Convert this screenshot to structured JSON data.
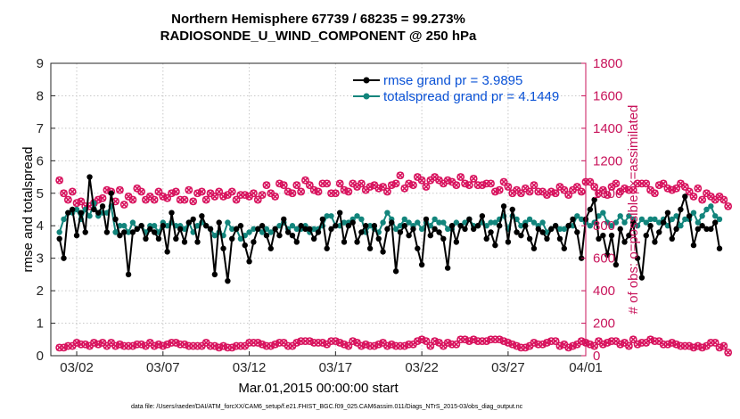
{
  "chart_data": {
    "type": "line",
    "title_line1": "Northern Hemisphere 67739 / 68235 = 99.273%",
    "title_line2": "RADIOSONDE_U_WIND_COMPONENT @ 250 hPa",
    "xlabel": "Mar.01,2015 00:00:00 start",
    "ylabel_left": "rmse and totalspread",
    "ylabel_right": "# of obs: o=possible; ×=assimilated",
    "xlim": [
      0.5,
      31.5
    ],
    "ylim_left": [
      0,
      9
    ],
    "ylim_right": [
      0,
      1800
    ],
    "x_ticks": [
      {
        "x": 2,
        "label": "03/02"
      },
      {
        "x": 7,
        "label": "03/07"
      },
      {
        "x": 12,
        "label": "03/12"
      },
      {
        "x": 17,
        "label": "03/17"
      },
      {
        "x": 22,
        "label": "03/22"
      },
      {
        "x": 27,
        "label": "03/27"
      },
      {
        "x": 31.5,
        "label": "04/01"
      }
    ],
    "y_ticks_left": [
      "0",
      "1",
      "2",
      "3",
      "4",
      "5",
      "6",
      "7",
      "8",
      "9"
    ],
    "y_ticks_right": [
      "0",
      "200",
      "400",
      "600",
      "800",
      "1000",
      "1200",
      "1400",
      "1600",
      "1800"
    ],
    "colors": {
      "rmse": "#000000",
      "spread": "#12857c",
      "obs": "#d8135e",
      "legend_text": "#0a52d6",
      "right_axis": "#c8145b"
    },
    "step": 0.25,
    "series": [
      {
        "name": "rmse grand pr = 3.9895",
        "values": [
          3.6,
          3.0,
          4.4,
          4.5,
          3.7,
          4.4,
          3.8,
          5.5,
          4.5,
          4.4,
          4.6,
          3.8,
          5.0,
          4.2,
          3.7,
          3.8,
          2.5,
          3.8,
          3.9,
          4.0,
          3.6,
          3.9,
          3.8,
          3.6,
          4.0,
          3.2,
          4.4,
          3.6,
          3.9,
          3.5,
          4.1,
          4.2,
          3.5,
          4.3,
          4.0,
          3.9,
          2.5,
          4.1,
          3.3,
          2.3,
          3.6,
          3.9,
          4.0,
          3.4,
          2.9,
          3.5,
          3.9,
          4.0,
          3.7,
          3.3,
          3.9,
          3.7,
          4.2,
          3.8,
          3.7,
          3.5,
          4.0,
          3.9,
          3.9,
          3.6,
          3.8,
          4.2,
          3.3,
          3.9,
          4.0,
          4.4,
          3.5,
          4.0,
          4.1,
          3.5,
          3.8,
          4.0,
          3.3,
          4.0,
          3.6,
          3.2,
          3.9,
          4.1,
          2.6,
          3.8,
          4.0,
          3.7,
          3.9,
          3.3,
          2.8,
          4.2,
          3.7,
          3.9,
          3.8,
          3.6,
          2.7,
          4.0,
          3.5,
          4.0,
          3.9,
          4.2,
          3.9,
          4.0,
          4.3,
          3.6,
          3.8,
          3.4,
          4.0,
          4.6,
          3.5,
          4.5,
          3.8,
          3.7,
          4.0,
          3.6,
          3.3,
          3.9,
          3.8,
          3.6,
          3.9,
          4.0,
          3.6,
          3.3,
          4.0,
          4.2,
          3.8,
          3.0,
          4.2,
          4.5,
          4.8,
          3.6,
          3.7,
          3.1,
          3.7,
          2.8,
          3.9,
          3.5,
          3.7,
          4.1,
          3.0,
          2.4,
          3.7,
          4.0,
          3.5,
          3.8,
          4.1,
          4.4,
          3.6,
          3.9,
          4.5,
          4.9,
          4.3,
          3.4,
          3.9,
          4.0,
          3.9,
          3.9,
          4.1,
          3.3
        ]
      },
      {
        "name": "totalspread grand pr = 4.1449",
        "values": [
          3.8,
          4.2,
          4.4,
          4.4,
          4.5,
          4.2,
          4.5,
          4.3,
          4.7,
          4.3,
          4.4,
          4.4,
          4.6,
          3.8,
          4.0,
          4.0,
          3.8,
          4.1,
          3.9,
          4.0,
          3.8,
          4.0,
          4.0,
          3.8,
          4.1,
          4.0,
          4.1,
          4.0,
          4.0,
          3.9,
          4.1,
          3.8,
          4.0,
          4.1,
          4.0,
          3.9,
          3.7,
          3.8,
          3.7,
          4.1,
          3.9,
          3.9,
          3.6,
          3.7,
          3.8,
          3.9,
          3.9,
          3.8,
          3.9,
          3.8,
          3.9,
          4.0,
          4.1,
          3.9,
          4.0,
          3.9,
          3.9,
          4.0,
          3.8,
          3.9,
          3.9,
          4.0,
          4.3,
          4.3,
          4.0,
          4.0,
          4.1,
          4.1,
          4.2,
          4.3,
          4.2,
          3.8,
          4.0,
          3.9,
          3.8,
          4.1,
          4.4,
          4.2,
          3.9,
          4.0,
          4.2,
          4.1,
          4.0,
          4.1,
          3.9,
          4.1,
          4.0,
          4.2,
          4.1,
          4.1,
          3.9,
          3.9,
          4.1,
          4.0,
          4.1,
          4.2,
          4.0,
          4.0,
          4.1,
          4.0,
          4.1,
          4.1,
          4.2,
          4.3,
          3.9,
          4.3,
          4.2,
          4.0,
          4.1,
          4.2,
          4.1,
          4.0,
          4.1,
          3.8,
          3.9,
          4.0,
          3.9,
          3.9,
          4.0,
          4.0,
          4.3,
          4.2,
          4.1,
          4.0,
          4.1,
          4.3,
          4.4,
          4.1,
          4.0,
          4.1,
          4.3,
          4.1,
          4.3,
          4.2,
          4.0,
          4.2,
          4.1,
          4.2,
          4.2,
          4.1,
          4.2,
          4.0,
          4.2,
          4.3,
          4.0,
          4.2,
          4.2,
          4.4,
          4.1,
          4.3,
          4.5,
          4.6,
          4.3,
          4.2
        ]
      }
    ],
    "obs_possible": [
      1080,
      1000,
      960,
      1010,
      940,
      950,
      920,
      920,
      940,
      960,
      970,
      1020,
      1010,
      950,
      1020,
      930,
      980,
      960,
      1030,
      1010,
      960,
      980,
      960,
      1010,
      980,
      970,
      1000,
      1010,
      960,
      960,
      1020,
      950,
      1000,
      1010,
      960,
      1000,
      980,
      1010,
      980,
      990,
      1010,
      960,
      990,
      990,
      980,
      1000,
      960,
      990,
      1050,
      1000,
      980,
      1060,
      1050,
      1010,
      1000,
      1050,
      1010,
      1080,
      1050,
      1020,
      1010,
      1060,
      1060,
      1000,
      1000,
      1060,
      1020,
      1010,
      1060,
      1040,
      1060,
      1020,
      1040,
      1050,
      1030,
      1040,
      1010,
      1050,
      1060,
      1110,
      1030,
      1060,
      1050,
      1100,
      1080,
      1040,
      1080,
      1100,
      1080,
      1060,
      1080,
      1070,
      1050,
      1100,
      1060,
      1050,
      1090,
      1050,
      1050,
      1060,
      1060,
      1010,
      1020,
      1070,
      1040,
      1000,
      1020,
      1000,
      1030,
      1010,
      1050,
      1010,
      1010,
      990,
      1010,
      1000,
      1040,
      1020,
      990,
      1020,
      1040,
      1010,
      1070,
      1070,
      1040,
      1000,
      1020,
      990,
      1040,
      1060,
      1010,
      1030,
      1020,
      1020,
      1060,
      1060,
      1060,
      1020,
      1000,
      1050,
      1060,
      1030,
      1020,
      1030,
      1060,
      1040,
      1010,
      980,
      1030,
      960,
      1000,
      980,
      960,
      980,
      960,
      920
    ],
    "obs_assimilated": [
      50,
      50,
      60,
      60,
      80,
      70,
      70,
      60,
      80,
      70,
      80,
      60,
      80,
      60,
      70,
      60,
      60,
      60,
      70,
      70,
      60,
      80,
      60,
      70,
      60,
      70,
      80,
      80,
      70,
      70,
      60,
      60,
      60,
      60,
      80,
      60,
      60,
      50,
      60,
      50,
      50,
      60,
      60,
      60,
      80,
      80,
      80,
      70,
      60,
      60,
      70,
      80,
      80,
      60,
      60,
      80,
      90,
      90,
      90,
      80,
      80,
      80,
      70,
      90,
      90,
      80,
      70,
      60,
      90,
      80,
      60,
      70,
      60,
      60,
      70,
      80,
      60,
      70,
      60,
      60,
      60,
      70,
      70,
      90,
      100,
      90,
      60,
      90,
      80,
      60,
      80,
      70,
      70,
      100,
      100,
      90,
      100,
      90,
      90,
      90,
      100,
      100,
      100,
      90,
      80,
      70,
      60,
      50,
      50,
      60,
      80,
      70,
      70,
      80,
      90,
      90,
      60,
      70,
      50,
      60,
      70,
      90,
      80,
      70,
      60,
      90,
      70,
      80,
      90,
      90,
      70,
      80,
      60,
      100,
      70,
      80,
      80,
      100,
      90,
      90,
      70,
      70,
      80,
      70,
      60,
      60,
      60,
      50,
      60,
      50,
      60,
      80,
      80,
      50,
      60,
      20
    ]
  },
  "footer": "data file: /Users/raeder/DAI/ATM_forcXX/CAM6_setup/f.e21.FHIST_BGC.f09_025.CAM6assim.011/Diags_NTrS_2015-03/obs_diag_output.nc"
}
